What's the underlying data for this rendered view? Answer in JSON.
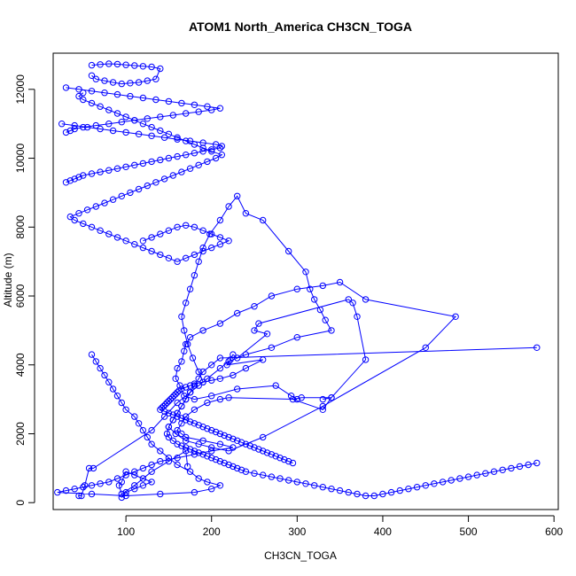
{
  "chart_data": {
    "type": "scatter",
    "title": "ATOM1 North_America CH3CN_TOGA",
    "xlabel": "CH3CN_TOGA",
    "ylabel": "Altitude (m)",
    "xlim": [
      15,
      605
    ],
    "ylim": [
      -200,
      13050
    ],
    "xticks": [
      100,
      200,
      300,
      400,
      500,
      600
    ],
    "yticks": [
      0,
      2000,
      4000,
      6000,
      8000,
      10000,
      12000
    ],
    "grid": false,
    "legend": "none",
    "color": "#0000ff",
    "series": [
      {
        "x": [
          45,
          48,
          52,
          57,
          62,
          130,
          145,
          160,
          175,
          190,
          185,
          178,
          172,
          168,
          165,
          170,
          175,
          180,
          185,
          190,
          198,
          210,
          220,
          230,
          240,
          260,
          290,
          310,
          315,
          320,
          327,
          333,
          340,
          300,
          270,
          240,
          220,
          210,
          195,
          185,
          175,
          170,
          165,
          160,
          155,
          150,
          158,
          170,
          185,
          200,
          220,
          260,
          330,
          450,
          485,
          380,
          350,
          330,
          300,
          270,
          250,
          230,
          210,
          190,
          175,
          170,
          168,
          165,
          160,
          158,
          163,
          168,
          180,
          200,
          230,
          275,
          293,
          300,
          220,
          210,
          195,
          180,
          170,
          165,
          160,
          165,
          170,
          190,
          210,
          225,
          200,
          180,
          160,
          140,
          130,
          120,
          110,
          100,
          90,
          80,
          70,
          60,
          50,
          40,
          30,
          20,
          60,
          100,
          140,
          180,
          200,
          210,
          195,
          185,
          175,
          160,
          150,
          140,
          130,
          125,
          120,
          115,
          110,
          100,
          95,
          90,
          85,
          80,
          75,
          70,
          65,
          60
        ],
        "y": [
          200,
          200,
          500,
          1000,
          1000,
          2100,
          2500,
          2900,
          3200,
          3500,
          3800,
          4200,
          4600,
          5000,
          5400,
          5800,
          6200,
          6600,
          7000,
          7400,
          7800,
          8200,
          8600,
          8900,
          8400,
          8200,
          7300,
          6700,
          6200,
          5900,
          5600,
          5300,
          5000,
          4800,
          4500,
          4300,
          4100,
          3900,
          3600,
          3400,
          3200,
          3000,
          2800,
          2600,
          2400,
          2200,
          2000,
          1800,
          1700,
          1600,
          1500,
          1900,
          2800,
          4500,
          5400,
          5900,
          6400,
          6300,
          6200,
          6000,
          5700,
          5500,
          5200,
          5000,
          4800,
          4600,
          4400,
          4100,
          3900,
          3600,
          3400,
          3100,
          3000,
          3100,
          3300,
          3400,
          3100,
          3000,
          3050,
          3000,
          2900,
          2700,
          2500,
          2300,
          2100,
          2000,
          1900,
          1800,
          1700,
          1600,
          1500,
          1400,
          1300,
          1200,
          1100,
          1000,
          900,
          800,
          700,
          600,
          550,
          500,
          450,
          400,
          350,
          300,
          250,
          200,
          250,
          300,
          400,
          500,
          600,
          700,
          900,
          1100,
          1300,
          1500,
          1700,
          1900,
          2100,
          2300,
          2500,
          2700,
          2900,
          3100,
          3300,
          3500,
          3700,
          3900,
          4100,
          4300
        ]
      },
      {
        "x": [
          330,
          340,
          305,
          295,
          330,
          340,
          380,
          370,
          365,
          360,
          255,
          250,
          265,
          230,
          225,
          222,
          218,
          260,
          240,
          225,
          210,
          200,
          190,
          180,
          175,
          170,
          165,
          162,
          160,
          158,
          156,
          154,
          152,
          150,
          148,
          146,
          144,
          142,
          140,
          145,
          150,
          155,
          160,
          165,
          170,
          175,
          180,
          185,
          190,
          195,
          200,
          205,
          210,
          215,
          220,
          225,
          230,
          235,
          240,
          245,
          250,
          255,
          260,
          265,
          270,
          275,
          280,
          285,
          290,
          295
        ],
        "y": [
          3000,
          3050,
          3050,
          3000,
          2700,
          3050,
          4150,
          5400,
          5800,
          5900,
          5200,
          5000,
          4900,
          4200,
          4300,
          4150,
          4000,
          4150,
          3900,
          3700,
          3600,
          3550,
          3500,
          3450,
          3400,
          3350,
          3300,
          3250,
          3200,
          3150,
          3100,
          3050,
          3000,
          2950,
          2900,
          2850,
          2800,
          2750,
          2700,
          2650,
          2600,
          2550,
          2500,
          2450,
          2400,
          2350,
          2300,
          2250,
          2200,
          2150,
          2100,
          2050,
          2000,
          1950,
          1900,
          1850,
          1800,
          1750,
          1700,
          1650,
          1600,
          1550,
          1500,
          1450,
          1400,
          1350,
          1300,
          1250,
          1200,
          1150
        ]
      },
      {
        "x": [
          580,
          210,
          200,
          190,
          185,
          180,
          175,
          170,
          165,
          160,
          155,
          150,
          148,
          150,
          155,
          160,
          165,
          170,
          175,
          180,
          185,
          190,
          195,
          200,
          205,
          210,
          215,
          220,
          225,
          230,
          235,
          240,
          250,
          260,
          270,
          280,
          290,
          300,
          310,
          320,
          330,
          340,
          350,
          360,
          370,
          380,
          390,
          400,
          410,
          420,
          430,
          440,
          450,
          460,
          470,
          480,
          490,
          500,
          510,
          520,
          530,
          540,
          550,
          560,
          570,
          580
        ],
        "y": [
          4500,
          4200,
          4000,
          3800,
          3600,
          3400,
          3200,
          3000,
          2800,
          2600,
          2400,
          2200,
          2000,
          1900,
          1800,
          1700,
          1650,
          1600,
          1550,
          1500,
          1450,
          1400,
          1350,
          1300,
          1250,
          1200,
          1150,
          1100,
          1050,
          1000,
          950,
          900,
          850,
          800,
          750,
          700,
          650,
          600,
          550,
          500,
          450,
          400,
          350,
          300,
          250,
          200,
          200,
          250,
          300,
          350,
          400,
          450,
          500,
          550,
          600,
          650,
          700,
          750,
          800,
          850,
          900,
          950,
          1000,
          1050,
          1100,
          1150
        ]
      },
      {
        "x": [
          95,
          100,
          110,
          120,
          130,
          120,
          110,
          100,
          95,
          92,
          95,
          110,
          130,
          150,
          170,
          172
        ],
        "y": [
          150,
          300,
          400,
          500,
          600,
          700,
          800,
          900,
          600,
          500,
          250,
          500,
          900,
          1200,
          1500,
          1050
        ]
      },
      {
        "x": [
          120,
          130,
          140,
          150,
          160,
          170,
          180,
          190,
          200,
          210,
          220,
          210,
          200,
          190,
          180,
          170,
          160,
          150,
          140,
          130,
          120,
          110,
          100,
          90,
          80,
          70,
          60,
          50,
          40,
          35,
          45,
          55,
          65,
          75,
          85,
          95,
          105,
          115,
          125,
          135,
          145,
          155,
          165,
          175,
          185,
          195,
          205,
          212,
          200,
          190,
          180,
          170,
          160,
          150,
          140,
          130,
          120,
          110,
          100,
          90,
          80,
          70,
          60,
          50,
          45,
          50
        ],
        "y": [
          7600,
          7700,
          7800,
          7900,
          8000,
          8050,
          8000,
          7900,
          7800,
          7700,
          7600,
          7500,
          7400,
          7300,
          7200,
          7100,
          7000,
          7100,
          7200,
          7300,
          7400,
          7500,
          7600,
          7700,
          7800,
          7900,
          8000,
          8100,
          8200,
          8300,
          8400,
          8500,
          8600,
          8700,
          8800,
          8900,
          9000,
          9100,
          9200,
          9300,
          9400,
          9500,
          9600,
          9700,
          9800,
          9900,
          10000,
          10100,
          10200,
          10300,
          10400,
          10500,
          10600,
          10700,
          10800,
          10900,
          11000,
          11100,
          11200,
          11300,
          11400,
          11500,
          11600,
          11700,
          11800,
          11900
        ]
      },
      {
        "x": [
          25,
          40,
          55,
          70,
          85,
          100,
          115,
          130,
          145,
          160,
          175,
          190,
          205,
          212,
          210,
          200,
          190,
          180,
          170,
          160,
          150,
          140,
          130,
          120,
          110,
          100,
          90,
          80,
          70,
          60,
          50,
          45,
          40,
          35,
          30
        ],
        "y": [
          11000,
          10950,
          10900,
          10850,
          10800,
          10750,
          10700,
          10650,
          10600,
          10550,
          10500,
          10450,
          10400,
          10350,
          10300,
          10250,
          10200,
          10150,
          10100,
          10050,
          10000,
          9950,
          9900,
          9850,
          9800,
          9750,
          9700,
          9650,
          9600,
          9550,
          9500,
          9450,
          9400,
          9350,
          9300
        ]
      },
      {
        "x": [
          30,
          45,
          60,
          75,
          90,
          105,
          120,
          135,
          150,
          165,
          180,
          195,
          210,
          200,
          185,
          170,
          155,
          140,
          125,
          110,
          95,
          80,
          65,
          50,
          40,
          35,
          30
        ],
        "y": [
          12050,
          12000,
          11950,
          11900,
          11850,
          11800,
          11750,
          11700,
          11650,
          11600,
          11550,
          11500,
          11450,
          11400,
          11350,
          11300,
          11250,
          11200,
          11150,
          11100,
          11050,
          11000,
          10950,
          10900,
          10850,
          10800,
          10750
        ]
      },
      {
        "x": [
          60,
          70,
          80,
          90,
          100,
          110,
          120,
          130,
          140,
          135,
          125,
          115,
          105,
          95,
          85,
          75,
          65,
          60
        ],
        "y": [
          12700,
          12720,
          12740,
          12730,
          12710,
          12690,
          12670,
          12650,
          12600,
          12300,
          12250,
          12200,
          12180,
          12160,
          12200,
          12250,
          12300,
          12400
        ]
      }
    ]
  }
}
